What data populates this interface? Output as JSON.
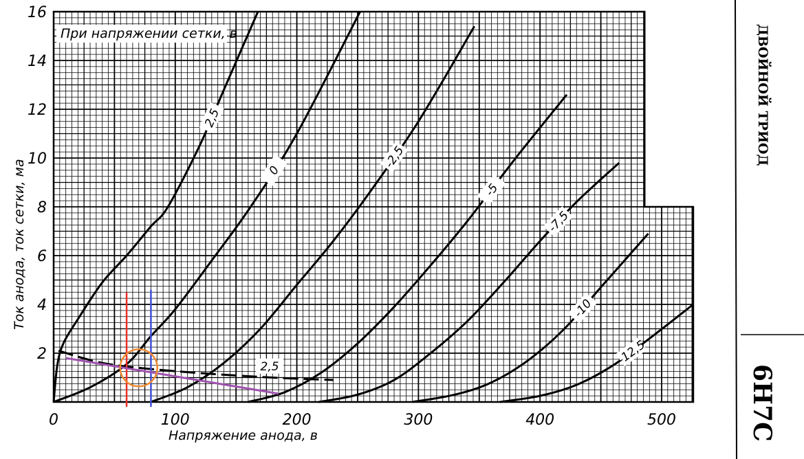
{
  "chart_data": {
    "type": "line",
    "title": "При напряжении сетки, в",
    "xlabel": "Напряжение анода, в",
    "ylabel": "Ток анода, ток сетки, ма",
    "xlim": [
      0,
      526
    ],
    "ylim": [
      0,
      16
    ],
    "x_ticks": [
      "0",
      "100",
      "200",
      "300",
      "400",
      "500"
    ],
    "y_ticks": [
      "2",
      "4",
      "6",
      "8",
      "10",
      "12",
      "14",
      "16"
    ],
    "grid": true,
    "series": [
      {
        "name": "2,5",
        "kind": "anode",
        "points": [
          [
            0,
            0
          ],
          [
            3,
            1.5
          ],
          [
            8,
            2.4
          ],
          [
            20,
            3.4
          ],
          [
            40,
            4.9
          ],
          [
            60,
            6.0
          ],
          [
            80,
            7.2
          ],
          [
            94,
            8
          ],
          [
            120,
            10.5
          ],
          [
            140,
            12.8
          ],
          [
            168,
            16
          ]
        ]
      },
      {
        "name": "0",
        "kind": "anode",
        "points": [
          [
            0,
            0
          ],
          [
            30,
            0.6
          ],
          [
            60,
            1.55
          ],
          [
            80,
            2.7
          ],
          [
            100,
            3.8
          ],
          [
            130,
            5.8
          ],
          [
            162,
            8
          ],
          [
            200,
            11
          ],
          [
            252,
            16
          ]
        ]
      },
      {
        "name": "-2,5",
        "kind": "anode",
        "points": [
          [
            80,
            0
          ],
          [
            110,
            0.6
          ],
          [
            140,
            1.6
          ],
          [
            170,
            3
          ],
          [
            200,
            4.8
          ],
          [
            230,
            6.6
          ],
          [
            260,
            8.6
          ],
          [
            300,
            11.5
          ],
          [
            346,
            15.4
          ]
        ]
      },
      {
        "name": "-5",
        "kind": "anode",
        "points": [
          [
            160,
            0
          ],
          [
            190,
            0.4
          ],
          [
            220,
            1.2
          ],
          [
            250,
            2.4
          ],
          [
            280,
            3.9
          ],
          [
            310,
            5.6
          ],
          [
            340,
            7.4
          ],
          [
            380,
            10
          ],
          [
            422,
            12.6
          ]
        ]
      },
      {
        "name": "-7,5",
        "kind": "anode",
        "points": [
          [
            218,
            0
          ],
          [
            250,
            0.3
          ],
          [
            280,
            0.9
          ],
          [
            310,
            2
          ],
          [
            340,
            3.3
          ],
          [
            370,
            4.9
          ],
          [
            400,
            6.6
          ],
          [
            430,
            8.2
          ],
          [
            465,
            9.8
          ]
        ]
      },
      {
        "name": "-10",
        "kind": "anode",
        "points": [
          [
            295,
            0
          ],
          [
            330,
            0.3
          ],
          [
            360,
            0.8
          ],
          [
            390,
            1.7
          ],
          [
            420,
            3
          ],
          [
            450,
            4.7
          ],
          [
            489,
            6.9
          ]
        ]
      },
      {
        "name": "-12,5",
        "kind": "anode",
        "points": [
          [
            367,
            0
          ],
          [
            400,
            0.25
          ],
          [
            430,
            0.7
          ],
          [
            460,
            1.5
          ],
          [
            490,
            2.6
          ],
          [
            526,
            4
          ]
        ]
      },
      {
        "name": "2,5",
        "kind": "grid-current-dashed",
        "points": [
          [
            4,
            2.1
          ],
          [
            40,
            1.6
          ],
          [
            80,
            1.35
          ],
          [
            130,
            1.15
          ],
          [
            180,
            1.0
          ],
          [
            230,
            0.9
          ]
        ]
      }
    ],
    "annotations": [
      {
        "type": "vertical-line",
        "color": "#e8302a",
        "x": 60,
        "y_range": [
          -0.2,
          4.5
        ]
      },
      {
        "type": "vertical-line",
        "color": "#3f4fd8",
        "x": 80,
        "y_range": [
          -0.2,
          4.6
        ]
      },
      {
        "type": "line",
        "color": "#a052b0",
        "from": [
          10,
          1.8
        ],
        "to": [
          185,
          0.34
        ]
      },
      {
        "type": "circle",
        "color": "#f08a30",
        "center": [
          70,
          1.4
        ]
      }
    ]
  },
  "side": {
    "title": "ДВОЙНОЙ ТРИОД",
    "model": "6Н7С"
  }
}
